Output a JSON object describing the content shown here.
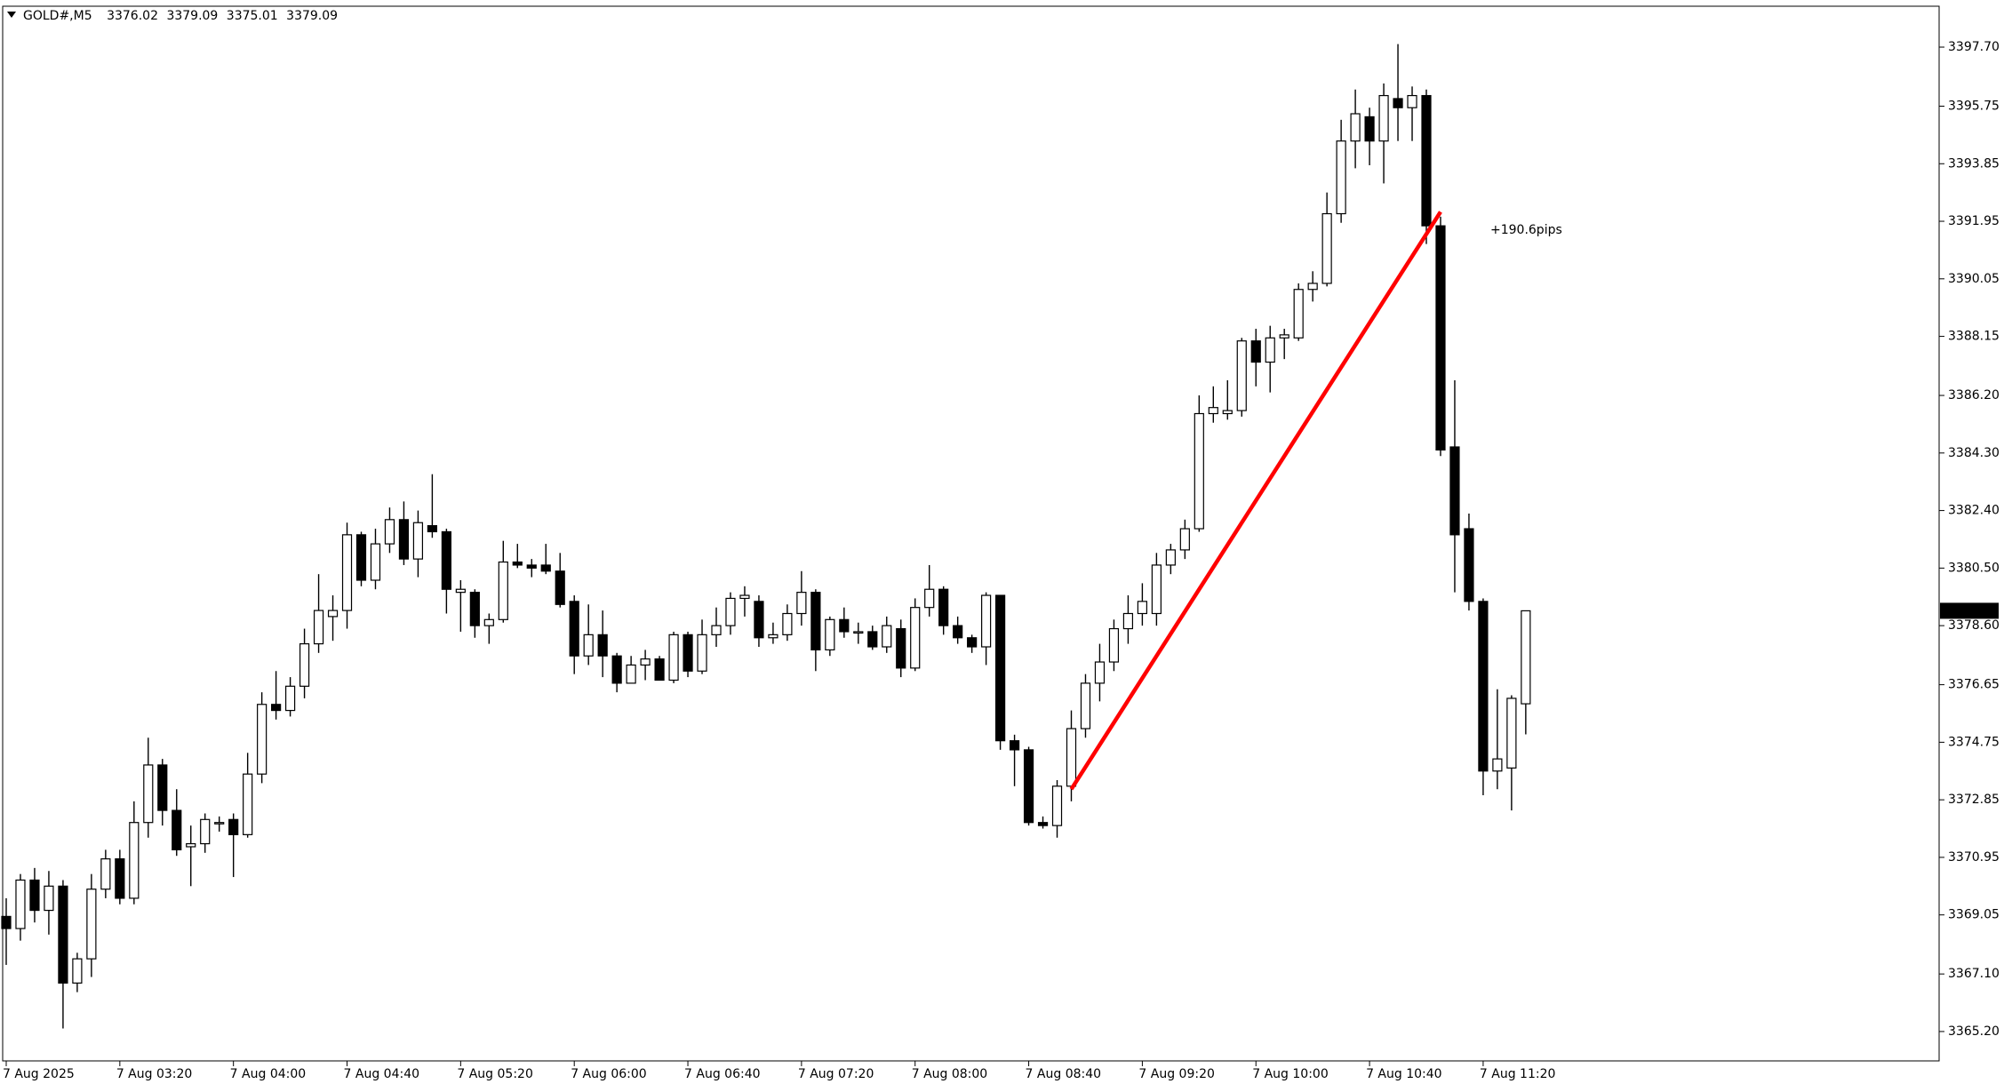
{
  "header": {
    "symbol": "GOLD#,M5"
  },
  "chart_data": {
    "type": "candlestick",
    "categories": [
      "7 Aug 2025",
      null,
      null,
      null,
      null,
      null,
      null,
      null,
      "7 Aug 03:20",
      null,
      null,
      null,
      null,
      null,
      null,
      null,
      "7 Aug 04:00",
      null,
      null,
      null,
      null,
      null,
      null,
      null,
      "7 Aug 04:40",
      null,
      null,
      null,
      null,
      null,
      null,
      null,
      "7 Aug 05:20",
      null,
      null,
      null,
      null,
      null,
      null,
      null,
      "7 Aug 06:00",
      null,
      null,
      null,
      null,
      null,
      null,
      null,
      "7 Aug 06:40",
      null,
      null,
      null,
      null,
      null,
      null,
      null,
      "7 Aug 07:20",
      null,
      null,
      null,
      null,
      null,
      null,
      null,
      "7 Aug 08:00",
      null,
      null,
      null,
      null,
      null,
      null,
      null,
      "7 Aug 08:40",
      null,
      null,
      null,
      null,
      null,
      null,
      null,
      "7 Aug 09:20",
      null,
      null,
      null,
      null,
      null,
      null,
      null,
      "7 Aug 10:00",
      null,
      null,
      null,
      null,
      null,
      null,
      null,
      "7 Aug 10:40",
      null,
      null,
      null,
      null,
      null,
      null,
      null,
      "7 Aug 11:20",
      null,
      null,
      null
    ],
    "open": [
      3369.0,
      3368.6,
      3370.2,
      3369.2,
      3370.0,
      3366.8,
      3367.6,
      3369.9,
      3370.9,
      3369.6,
      3372.1,
      3374.0,
      3372.5,
      3371.3,
      3371.4,
      3372.1,
      3372.2,
      3371.7,
      3373.7,
      3376.0,
      3375.8,
      3376.6,
      3378.0,
      3378.9,
      3379.1,
      3381.6,
      3380.1,
      3381.3,
      3382.1,
      3380.8,
      3381.9,
      3381.7,
      3379.7,
      3379.7,
      3378.6,
      3378.8,
      3380.7,
      3380.6,
      3380.6,
      3380.4,
      3379.4,
      3377.6,
      3378.3,
      3377.6,
      3376.7,
      3377.3,
      3377.5,
      3376.8,
      3378.3,
      3377.1,
      3378.3,
      3378.6,
      3379.5,
      3379.4,
      3378.2,
      3378.3,
      3379.0,
      3379.7,
      3377.8,
      3378.8,
      3378.4,
      3378.4,
      3377.9,
      3378.5,
      3377.2,
      3379.2,
      3379.8,
      3378.6,
      3378.2,
      3377.9,
      3379.6,
      3374.8,
      3374.5,
      3372.1,
      3372.0,
      3373.3,
      3375.2,
      3376.7,
      3377.4,
      3378.5,
      3379.0,
      3379.0,
      3380.6,
      3381.1,
      3381.8,
      3385.6,
      3385.6,
      3385.7,
      3388.0,
      3387.3,
      3388.1,
      3388.1,
      3389.7,
      3389.9,
      3392.2,
      3394.6,
      3395.4,
      3394.6,
      3396.0,
      3395.7,
      3396.1,
      3391.8,
      3384.5,
      3381.8,
      3379.4,
      3373.8,
      3373.9,
      3376.02
    ],
    "high": [
      3369.6,
      3370.4,
      3370.6,
      3370.5,
      3370.2,
      3367.8,
      3370.4,
      3371.2,
      3371.2,
      3372.8,
      3374.9,
      3374.2,
      3373.2,
      3372.0,
      3372.4,
      3372.3,
      3372.4,
      3374.4,
      3376.4,
      3377.1,
      3376.9,
      3378.5,
      3380.3,
      3379.6,
      3382.0,
      3381.7,
      3381.8,
      3382.5,
      3382.7,
      3382.4,
      3383.6,
      3381.8,
      3380.1,
      3379.8,
      3379.0,
      3381.4,
      3381.3,
      3380.8,
      3381.3,
      3381.0,
      3379.6,
      3379.3,
      3379.1,
      3377.7,
      3377.6,
      3377.8,
      3377.6,
      3378.4,
      3378.4,
      3378.8,
      3379.2,
      3379.7,
      3379.9,
      3379.6,
      3378.7,
      3379.3,
      3380.4,
      3379.8,
      3378.9,
      3379.2,
      3378.7,
      3378.6,
      3378.9,
      3378.8,
      3379.5,
      3380.6,
      3379.9,
      3378.9,
      3378.3,
      3379.7,
      3379.6,
      3375.0,
      3374.6,
      3372.3,
      3373.5,
      3375.8,
      3377.0,
      3378.0,
      3378.8,
      3379.6,
      3380.0,
      3381.0,
      3381.3,
      3382.1,
      3386.2,
      3386.5,
      3386.7,
      3388.1,
      3388.4,
      3388.5,
      3388.4,
      3389.9,
      3390.3,
      3392.9,
      3395.3,
      3396.3,
      3395.7,
      3396.5,
      3397.8,
      3396.4,
      3396.3,
      3392.1,
      3386.7,
      3382.3,
      3379.5,
      3376.5,
      3376.3,
      3379.09
    ],
    "low": [
      3367.4,
      3368.2,
      3368.8,
      3368.4,
      3365.3,
      3366.5,
      3367.0,
      3369.6,
      3369.4,
      3369.4,
      3371.6,
      3372.0,
      3371.0,
      3370.0,
      3371.1,
      3371.8,
      3370.3,
      3371.6,
      3373.4,
      3375.5,
      3375.6,
      3376.2,
      3377.7,
      3378.1,
      3378.5,
      3379.9,
      3379.8,
      3381.0,
      3380.6,
      3380.2,
      3381.5,
      3379.0,
      3378.4,
      3378.2,
      3378.0,
      3378.7,
      3380.5,
      3380.2,
      3380.3,
      3379.2,
      3377.0,
      3377.3,
      3376.9,
      3376.4,
      3376.7,
      3376.8,
      3376.8,
      3376.7,
      3376.9,
      3377.0,
      3377.9,
      3378.3,
      3378.9,
      3377.9,
      3378.0,
      3378.1,
      3378.6,
      3377.1,
      3377.6,
      3378.2,
      3378.0,
      3377.8,
      3377.7,
      3376.9,
      3377.1,
      3378.9,
      3378.3,
      3378.0,
      3377.7,
      3377.3,
      3374.5,
      3373.3,
      3372.0,
      3371.9,
      3371.6,
      3372.8,
      3374.9,
      3376.1,
      3377.1,
      3378.0,
      3378.6,
      3378.6,
      3380.3,
      3380.8,
      3381.7,
      3385.3,
      3385.4,
      3385.5,
      3386.5,
      3386.3,
      3387.4,
      3388.0,
      3389.3,
      3389.8,
      3391.9,
      3393.7,
      3393.8,
      3393.2,
      3394.6,
      3394.6,
      3391.2,
      3384.2,
      3379.7,
      3379.1,
      3373.0,
      3373.2,
      3372.5,
      3375.01
    ],
    "close": [
      3368.6,
      3370.2,
      3369.2,
      3370.0,
      3366.8,
      3367.6,
      3369.9,
      3370.9,
      3369.6,
      3372.1,
      3374.0,
      3372.5,
      3371.2,
      3371.4,
      3372.2,
      3372.1,
      3371.7,
      3373.7,
      3376.0,
      3375.8,
      3376.6,
      3378.0,
      3379.1,
      3379.1,
      3381.6,
      3380.1,
      3381.3,
      3382.1,
      3380.8,
      3382.0,
      3381.7,
      3379.8,
      3379.8,
      3378.6,
      3378.8,
      3380.7,
      3380.6,
      3380.5,
      3380.4,
      3379.3,
      3377.6,
      3378.3,
      3377.6,
      3376.7,
      3377.3,
      3377.5,
      3376.8,
      3378.3,
      3377.1,
      3378.3,
      3378.6,
      3379.5,
      3379.6,
      3378.2,
      3378.3,
      3379.0,
      3379.7,
      3377.8,
      3378.8,
      3378.4,
      3378.4,
      3377.9,
      3378.6,
      3377.2,
      3379.2,
      3379.8,
      3378.6,
      3378.2,
      3377.9,
      3379.6,
      3374.8,
      3374.5,
      3372.1,
      3372.0,
      3373.3,
      3375.2,
      3376.7,
      3377.4,
      3378.5,
      3379.0,
      3379.4,
      3380.6,
      3381.1,
      3381.8,
      3385.6,
      3385.8,
      3385.7,
      3388.0,
      3387.3,
      3388.1,
      3388.2,
      3389.7,
      3389.9,
      3392.2,
      3394.6,
      3395.5,
      3394.6,
      3396.1,
      3395.7,
      3396.1,
      3391.8,
      3384.4,
      3381.6,
      3379.4,
      3373.8,
      3374.2,
      3376.2,
      3379.09
    ],
    "ylim": [
      3364.23,
      3399.05
    ],
    "yticks": [
      {
        "value": 3397.7,
        "label": "3397.70"
      },
      3395.75,
      3393.85,
      3391.95,
      3390.05,
      3388.15,
      {
        "value": 3386.2,
        "label": "3386.20"
      },
      {
        "value": 3384.3,
        "label": "3384.30"
      },
      {
        "value": 3382.4,
        "label": "3382.40"
      },
      {
        "value": 3380.5,
        "label": "3380.50"
      },
      {
        "value": 3378.6,
        "label": "3378.60"
      },
      3376.65,
      3374.75,
      3372.85,
      3370.95,
      3369.05,
      {
        "value": 3367.1,
        "label": "3367.10"
      },
      {
        "value": 3365.2,
        "label": "3365.20"
      }
    ],
    "grid": false,
    "up_color": "#ffffff",
    "down_color": "#000000",
    "annotation": {
      "text": "+190.6pips",
      "color": "#ff0000",
      "line": [
        3373.2,
        3392.26
      ]
    }
  }
}
